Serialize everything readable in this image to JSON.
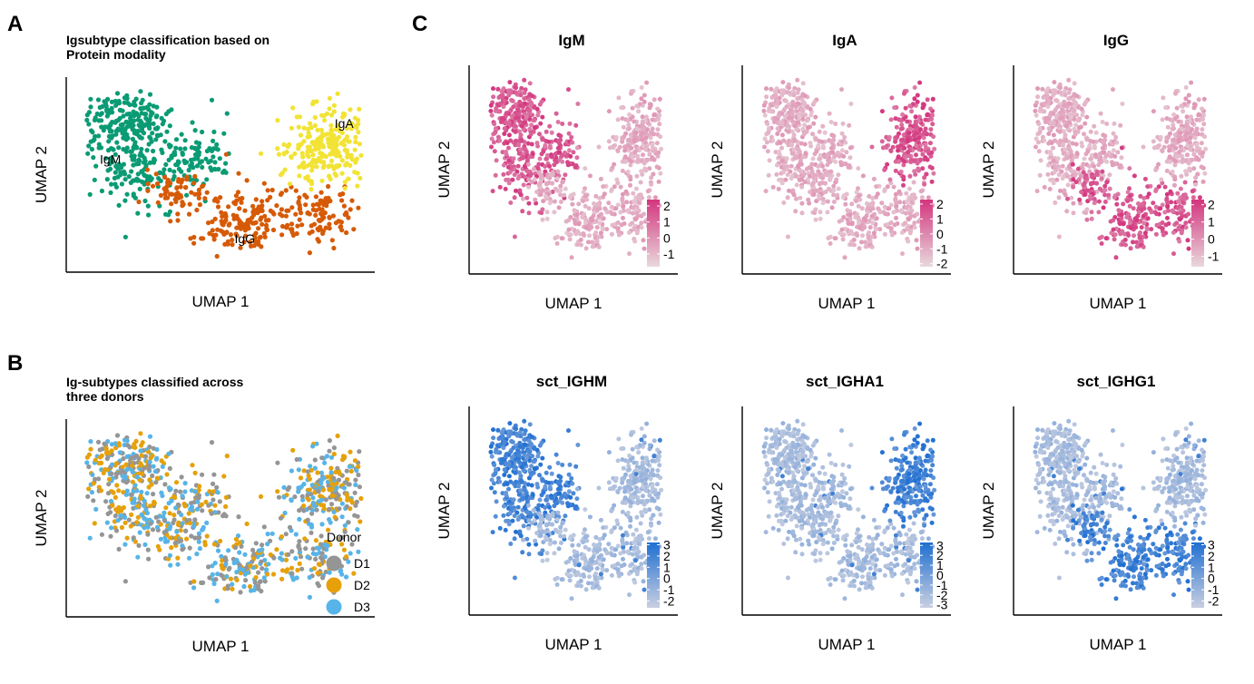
{
  "panel_labels": {
    "a": "A",
    "b": "B",
    "c": "C"
  },
  "colors": {
    "igm": "#0a9b74",
    "iga": "#f2e334",
    "igg": "#d65a06",
    "d1": "#959595",
    "d2": "#e6a10a",
    "d3": "#57b4e8",
    "protein_high": "#d3357e",
    "protein_low": "#e8d8dc",
    "rna_high": "#1f6fd2",
    "rna_low": "#c9cfe0"
  },
  "chart_data": [
    {
      "id": "A",
      "type": "scatter",
      "title": "Igsubtype classification based on\nProtein modality",
      "xlabel": "UMAP 1",
      "ylabel": "UMAP 2",
      "clusters": [
        {
          "label": "IgM",
          "color": "#0a9b74"
        },
        {
          "label": "IgA",
          "color": "#f2e334"
        },
        {
          "label": "IgG",
          "color": "#d65a06"
        }
      ]
    },
    {
      "id": "B",
      "type": "scatter",
      "title": "Ig-subtypes classified across\nthree donors",
      "xlabel": "UMAP 1",
      "ylabel": "UMAP 2",
      "legend": {
        "title": "Donor",
        "position": "right",
        "entries": [
          {
            "name": "D1",
            "color": "#959595"
          },
          {
            "name": "D2",
            "color": "#e6a10a"
          },
          {
            "name": "D3",
            "color": "#57b4e8"
          }
        ]
      }
    },
    {
      "id": "C1",
      "type": "scatter",
      "title": "IgM",
      "xlabel": "UMAP 1",
      "ylabel": "UMAP 2",
      "colorbar": {
        "ticks": [
          "2",
          "1",
          "0",
          "-1"
        ],
        "range": [
          -1.8,
          2.4
        ],
        "palette": "protein"
      },
      "high_cluster": "IgM"
    },
    {
      "id": "C2",
      "type": "scatter",
      "title": "IgA",
      "xlabel": "UMAP 1",
      "ylabel": "UMAP 2",
      "colorbar": {
        "ticks": [
          "2",
          "1",
          "0",
          "-1",
          "-2"
        ],
        "range": [
          -2.2,
          2.3
        ],
        "palette": "protein"
      },
      "high_cluster": "IgA"
    },
    {
      "id": "C3",
      "type": "scatter",
      "title": "IgG",
      "xlabel": "UMAP 1",
      "ylabel": "UMAP 2",
      "colorbar": {
        "ticks": [
          "2",
          "1",
          "0",
          "-1"
        ],
        "range": [
          -1.6,
          2.3
        ],
        "palette": "protein"
      },
      "high_cluster": "IgG"
    },
    {
      "id": "C4",
      "type": "scatter",
      "title": "sct_IGHM",
      "xlabel": "UMAP 1",
      "ylabel": "UMAP 2",
      "colorbar": {
        "ticks": [
          "3",
          "2",
          "1",
          "0",
          "-1",
          "-2"
        ],
        "range": [
          -2.6,
          3.2
        ],
        "palette": "rna"
      },
      "high_cluster": "IgM"
    },
    {
      "id": "C5",
      "type": "scatter",
      "title": "sct_IGHA1",
      "xlabel": "UMAP 1",
      "ylabel": "UMAP 2",
      "colorbar": {
        "ticks": [
          "3",
          "2",
          "1",
          "0",
          "-1",
          "-2",
          "-3"
        ],
        "range": [
          -3.3,
          3.3
        ],
        "palette": "rna"
      },
      "high_cluster": "IgA"
    },
    {
      "id": "C6",
      "type": "scatter",
      "title": "sct_IGHG1",
      "xlabel": "UMAP 1",
      "ylabel": "UMAP 2",
      "colorbar": {
        "ticks": [
          "3",
          "2",
          "1",
          "0",
          "-1",
          "-2"
        ],
        "range": [
          -2.6,
          3.2
        ],
        "palette": "rna"
      },
      "high_cluster": "IgG"
    }
  ]
}
